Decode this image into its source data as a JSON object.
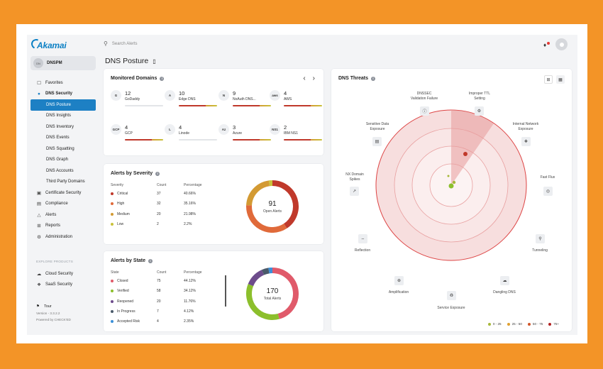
{
  "search": {
    "placeholder": "Search Alerts"
  },
  "logo": {
    "text": "Akamai"
  },
  "account": {
    "initials": "DN",
    "name": "DNSPM"
  },
  "page": {
    "title": "DNS Posture"
  },
  "sidebar": {
    "items": [
      {
        "label": "Favorites",
        "icon": "bookmark-icon"
      },
      {
        "label": "DNS Security",
        "icon": "globe-icon"
      },
      {
        "label": "DNS Posture"
      },
      {
        "label": "DNS Insights"
      },
      {
        "label": "DNS Inventory"
      },
      {
        "label": "DNS Events"
      },
      {
        "label": "DNS Squatting"
      },
      {
        "label": "DNS Graph"
      },
      {
        "label": "DNS Accounts"
      },
      {
        "label": "Third Party Domains"
      },
      {
        "label": "Certificate Security",
        "icon": "certificate-icon"
      },
      {
        "label": "Compliance",
        "icon": "clipboard-icon"
      },
      {
        "label": "Alerts",
        "icon": "warning-icon"
      },
      {
        "label": "Reports",
        "icon": "grid-icon"
      },
      {
        "label": "Administration",
        "icon": "gear-icon"
      }
    ],
    "explore_label": "EXPLORE PRODUCTS",
    "products": [
      {
        "label": "Cloud Security",
        "icon": "cloud-icon"
      },
      {
        "label": "SaaS Security",
        "icon": "network-icon"
      }
    ],
    "tour": "Tour",
    "version": "Version - 3.3.2.2",
    "powered": "Powered by CHECK'ED"
  },
  "monitored": {
    "title": "Monitored Domains",
    "domains": [
      {
        "count": "12",
        "name": "GoDaddy",
        "icon": "G",
        "risk": 0
      },
      {
        "count": "10",
        "name": "Edge DNS",
        "icon": "A",
        "risk": 1
      },
      {
        "count": "9",
        "name": "NoAuth DNS...",
        "icon": "N",
        "risk": 1
      },
      {
        "count": "4",
        "name": "AWS",
        "icon": "aws",
        "risk": 1
      },
      {
        "count": "4",
        "name": "GCP",
        "icon": "GCP",
        "risk": 1
      },
      {
        "count": "4",
        "name": "Linode",
        "icon": "L",
        "risk": 0
      },
      {
        "count": "3",
        "name": "Azure",
        "icon": "Az",
        "risk": 1
      },
      {
        "count": "2",
        "name": "IBM NS1",
        "icon": "NS1",
        "risk": 1
      }
    ]
  },
  "severity": {
    "title": "Alerts by Severity",
    "headers": [
      "Severity",
      "Count",
      "Percentage"
    ],
    "rows": [
      {
        "label": "Critical",
        "count": "37",
        "pct": "40.66%",
        "color": "#c0392b"
      },
      {
        "label": "High",
        "count": "32",
        "pct": "35.16%",
        "color": "#e06a3a"
      },
      {
        "label": "Medium",
        "count": "20",
        "pct": "21.98%",
        "color": "#d39a33"
      },
      {
        "label": "Low",
        "count": "2",
        "pct": "2.2%",
        "color": "#c9c23a"
      }
    ],
    "total": "91",
    "total_label": "Open Alerts"
  },
  "state": {
    "title": "Alerts by State",
    "headers": [
      "State",
      "Count",
      "Percentage"
    ],
    "rows": [
      {
        "label": "Closed",
        "count": "75",
        "pct": "44.12%",
        "color": "#e05a6a"
      },
      {
        "label": "Verified",
        "count": "58",
        "pct": "34.12%",
        "color": "#8cbf2c"
      },
      {
        "label": "Reopened",
        "count": "20",
        "pct": "11.76%",
        "color": "#6d4c8c"
      },
      {
        "label": "In Progress",
        "count": "7",
        "pct": "4.12%",
        "color": "#4a5a6a"
      },
      {
        "label": "Accepted Risk",
        "count": "4",
        "pct": "2.35%",
        "color": "#3a8fd8"
      }
    ],
    "total": "170",
    "total_label": "Total Alerts"
  },
  "threats": {
    "title": "DNS Threats",
    "labels": {
      "dnssec": "DNSSEC\nValidation Failure",
      "ttl": "Improper TTL\nSetting",
      "sensitive": "Sensitive Data\nExposure",
      "internal": "Internal Network\nExposure",
      "nx": "NX Domain\nSpikes",
      "fastflux": "Fast Flux",
      "reflection": "Reflection",
      "tunneling": "Tunneling",
      "amplification": "Amplification",
      "dangling": "Dangling DNS",
      "service": "Service Exposure"
    },
    "legend": [
      {
        "label": "0 - 25",
        "color": "#a7b83a"
      },
      {
        "label": "25 - 50",
        "color": "#e0a030"
      },
      {
        "label": "50 - 75",
        "color": "#d0562a"
      },
      {
        "label": "75+",
        "color": "#b22222"
      }
    ]
  }
}
